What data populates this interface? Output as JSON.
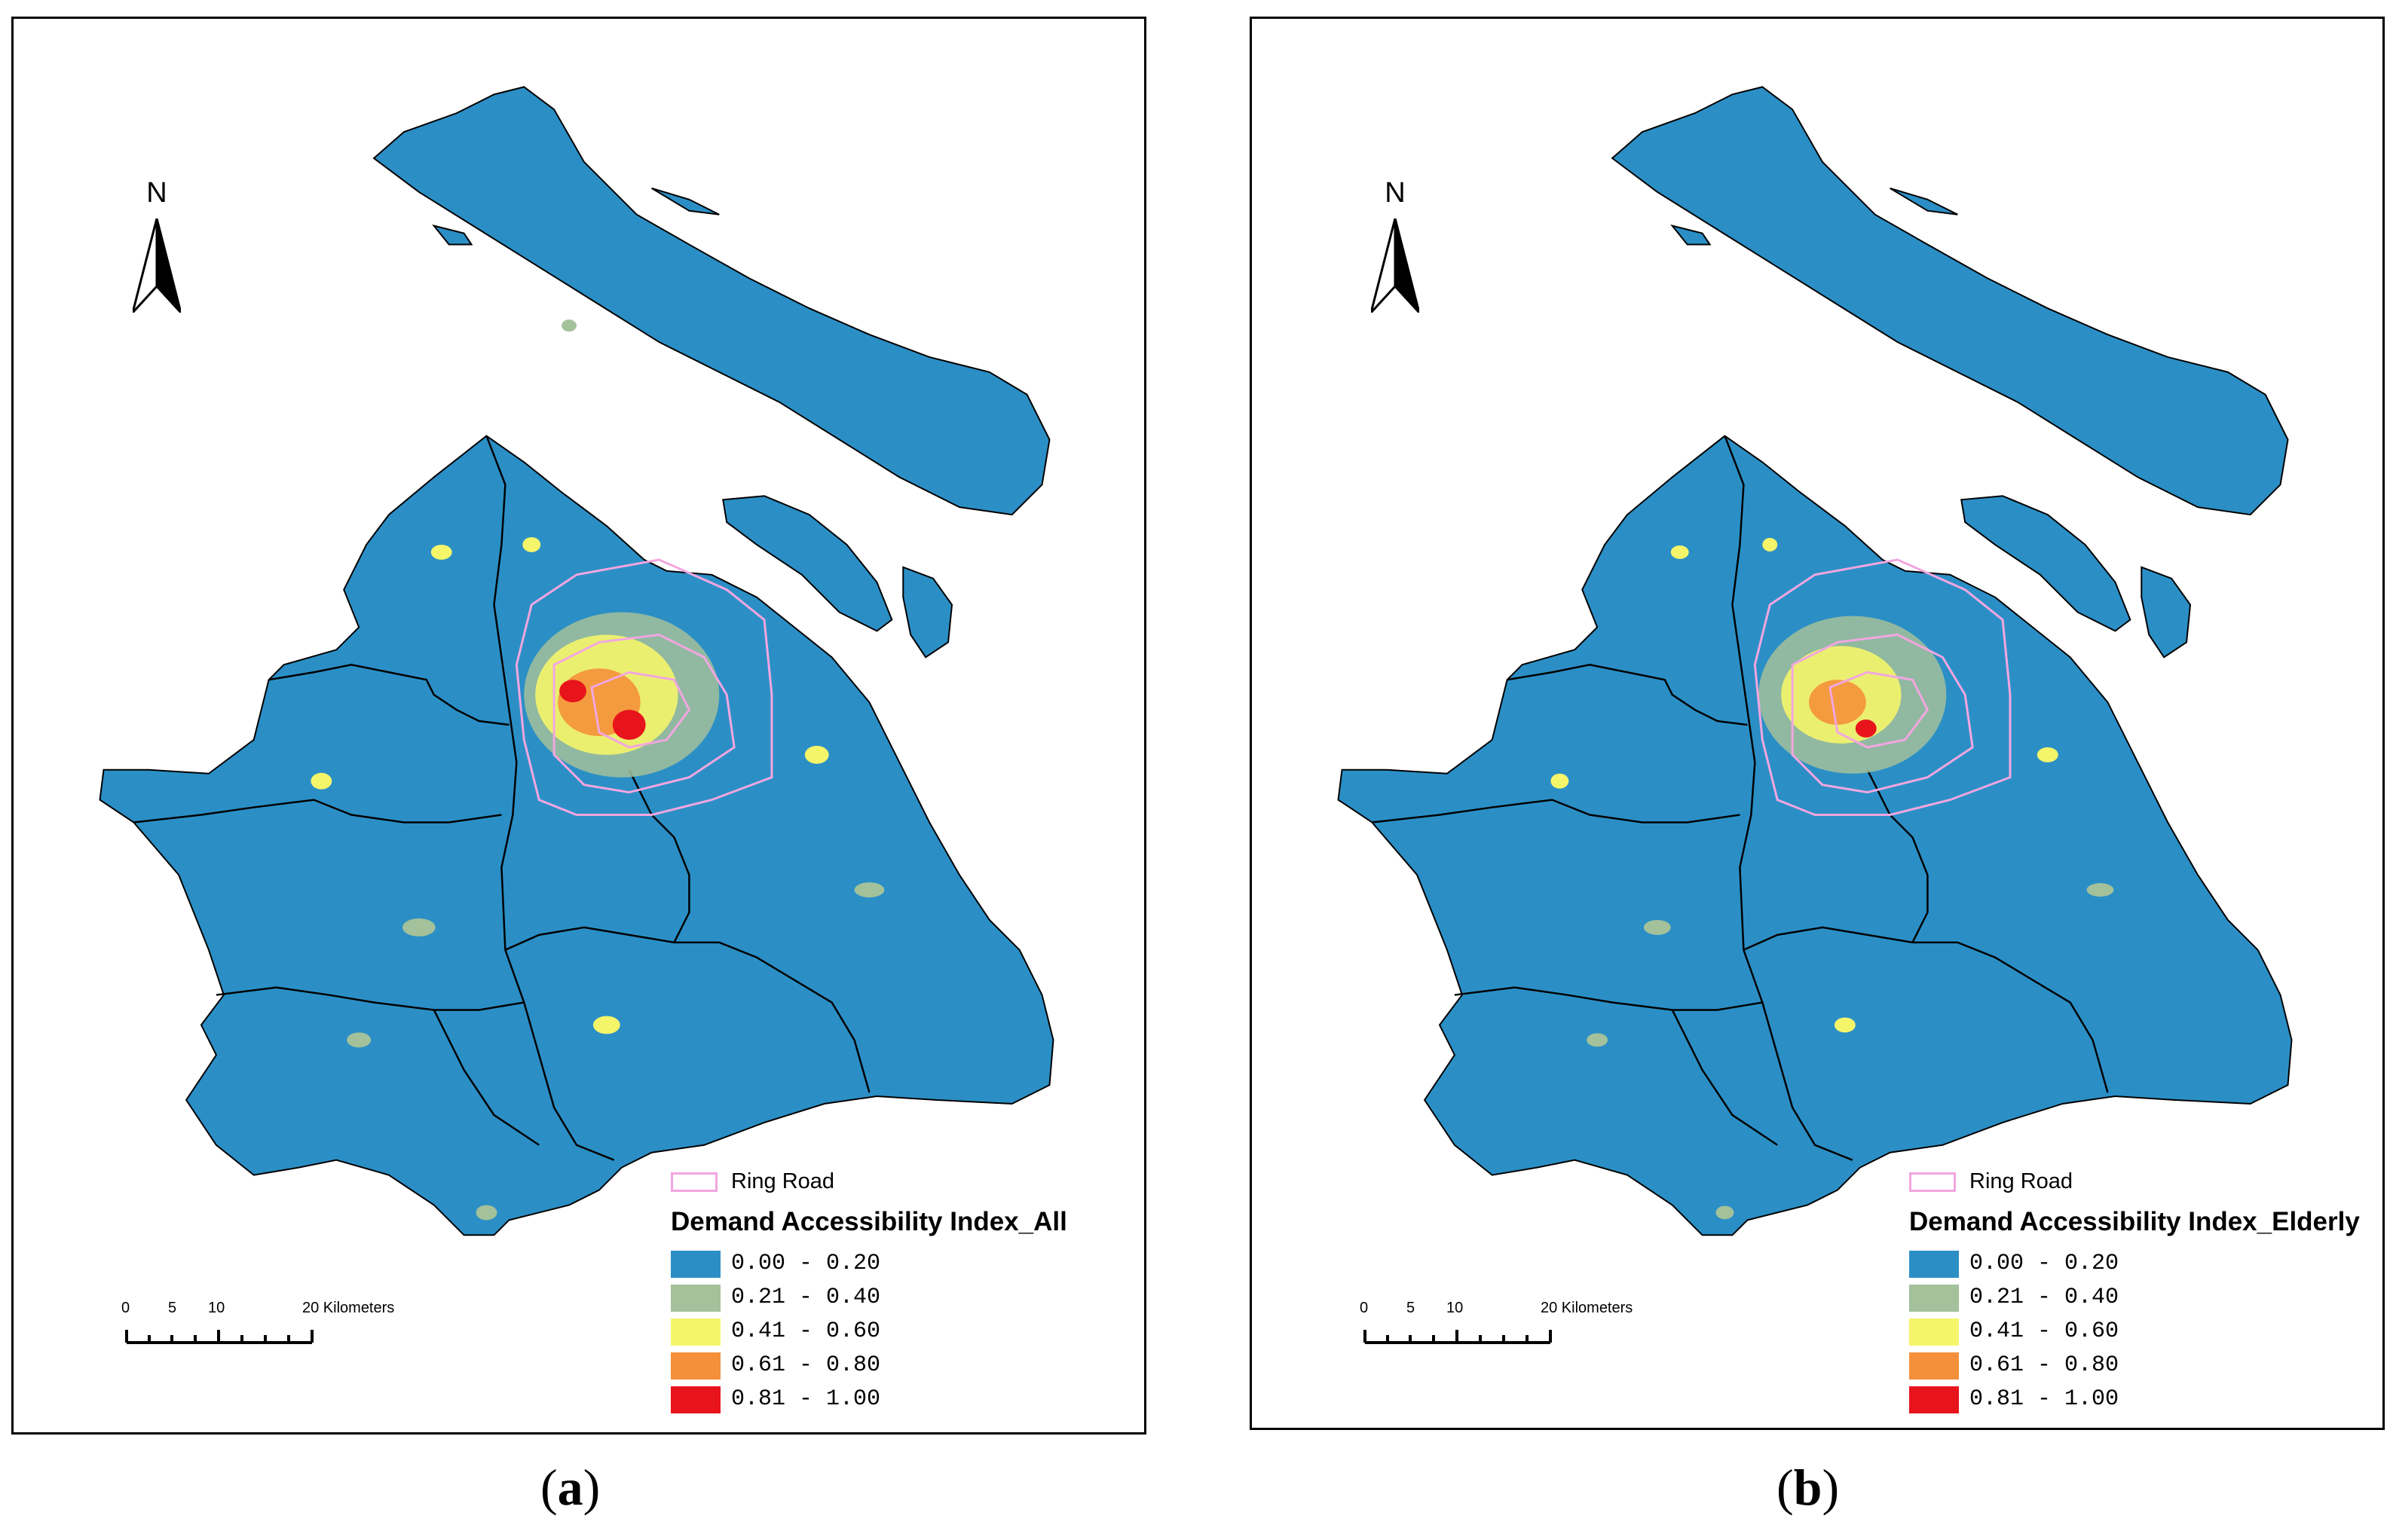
{
  "panels": [
    {
      "id": "a",
      "caption_open": "(",
      "caption_letter": "a",
      "caption_close": ")",
      "north_label": "N",
      "scale": {
        "ticks": [
          "0",
          "5",
          "10",
          "20 Kilometers"
        ]
      },
      "legend": {
        "ring_road_label": "Ring Road",
        "title": "Demand Accessibility Index_All",
        "classes": [
          {
            "range": "0.00 - 0.20",
            "color": "#2b8fc6"
          },
          {
            "range": "0.21 - 0.40",
            "color": "#a3c19a"
          },
          {
            "range": "0.41 - 0.60",
            "color": "#f5f56a"
          },
          {
            "range": "0.61 - 0.80",
            "color": "#f5903a"
          },
          {
            "range": "0.81 - 1.00",
            "color": "#e8141c"
          }
        ]
      }
    },
    {
      "id": "b",
      "caption_open": "(",
      "caption_letter": "b",
      "caption_close": ")",
      "north_label": "N",
      "scale": {
        "ticks": [
          "0",
          "5",
          "10",
          "20 Kilometers"
        ]
      },
      "legend": {
        "ring_road_label": "Ring Road",
        "title": "Demand Accessibility Index_Elderly",
        "classes": [
          {
            "range": "0.00 - 0.20",
            "color": "#2b8fc6"
          },
          {
            "range": "0.21 - 0.40",
            "color": "#a3c19a"
          },
          {
            "range": "0.41 - 0.60",
            "color": "#f5f56a"
          },
          {
            "range": "0.61 - 0.80",
            "color": "#f5903a"
          },
          {
            "range": "0.81 - 1.00",
            "color": "#e8141c"
          }
        ]
      }
    }
  ],
  "colors": {
    "land": "#2b8fc6",
    "district_border": "#000000",
    "ring_road": "#f2a6e0"
  }
}
